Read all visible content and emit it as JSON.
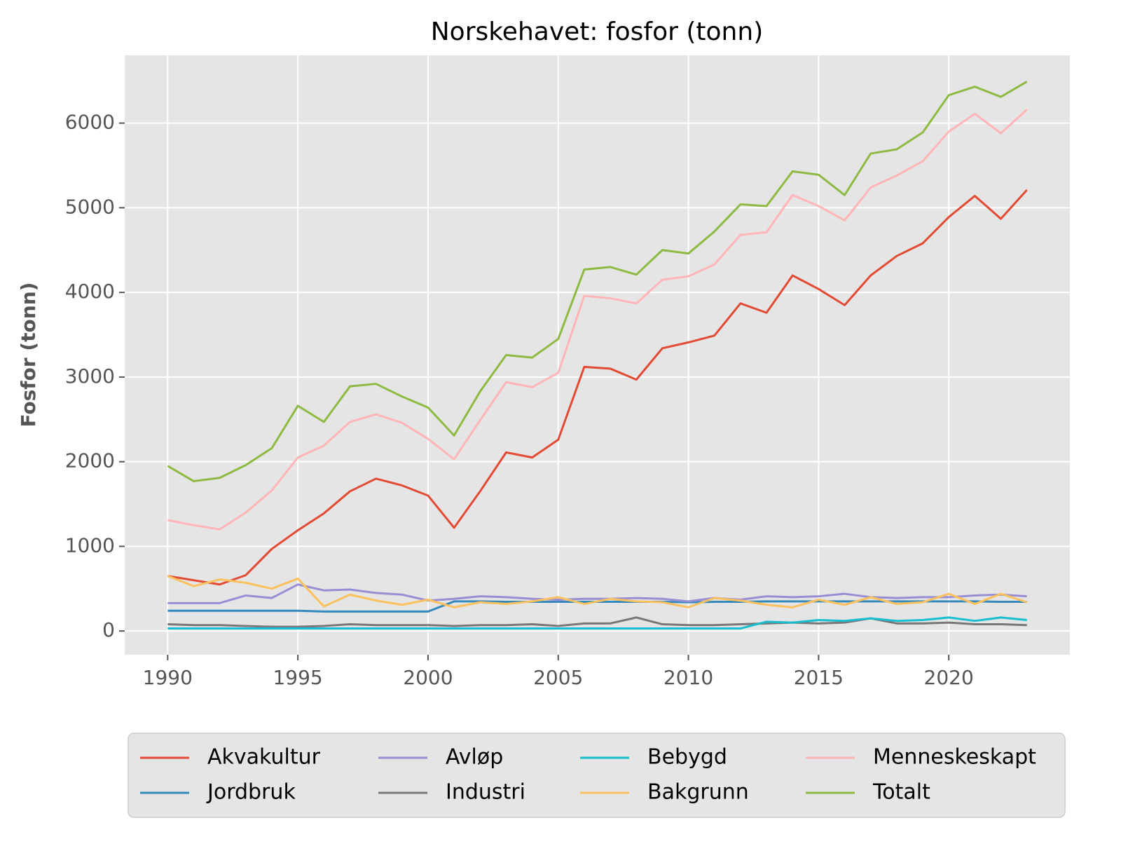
{
  "chart_data": {
    "type": "line",
    "title": "Norskehavet: fosfor (tonn)",
    "y_label": "Fosfor (tonn)",
    "x": [
      1990,
      1991,
      1992,
      1993,
      1994,
      1995,
      1996,
      1997,
      1998,
      1999,
      2000,
      2001,
      2002,
      2003,
      2004,
      2005,
      2006,
      2007,
      2008,
      2009,
      2010,
      2011,
      2012,
      2013,
      2014,
      2015,
      2016,
      2017,
      2018,
      2019,
      2020,
      2021,
      2022,
      2023
    ],
    "series": [
      {
        "name": "Akvakultur",
        "color": "#E24A33",
        "values": [
          650,
          600,
          550,
          660,
          970,
          1190,
          1390,
          1650,
          1800,
          1720,
          1600,
          1220,
          1650,
          2110,
          2050,
          2260,
          3120,
          3100,
          2970,
          3340,
          3410,
          3490,
          3870,
          3760,
          4200,
          4040,
          3850,
          4200,
          4430,
          4580,
          4890,
          5140,
          4870,
          5210
        ]
      },
      {
        "name": "Jordbruk",
        "color": "#348ABD",
        "values": [
          240,
          240,
          240,
          240,
          240,
          240,
          230,
          230,
          230,
          230,
          230,
          350,
          350,
          345,
          345,
          345,
          345,
          345,
          345,
          345,
          340,
          345,
          345,
          350,
          350,
          350,
          350,
          350,
          350,
          350,
          350,
          350,
          345,
          345
        ]
      },
      {
        "name": "Avløp",
        "color": "#988ED5",
        "values": [
          330,
          330,
          330,
          420,
          390,
          550,
          480,
          490,
          450,
          430,
          360,
          380,
          410,
          400,
          380,
          370,
          380,
          380,
          390,
          380,
          350,
          390,
          370,
          410,
          400,
          410,
          440,
          400,
          390,
          400,
          400,
          420,
          430,
          410
        ]
      },
      {
        "name": "Industri",
        "color": "#777777",
        "values": [
          80,
          70,
          70,
          60,
          50,
          50,
          60,
          80,
          70,
          70,
          70,
          60,
          70,
          70,
          80,
          60,
          90,
          90,
          160,
          80,
          70,
          70,
          80,
          90,
          100,
          90,
          100,
          150,
          90,
          90,
          100,
          80,
          80,
          70
        ]
      },
      {
        "name": "Bebygd",
        "color": "#17BECF",
        "values": [
          30,
          30,
          30,
          30,
          30,
          30,
          30,
          30,
          30,
          30,
          30,
          30,
          30,
          30,
          30,
          30,
          30,
          30,
          30,
          30,
          30,
          30,
          30,
          110,
          100,
          130,
          120,
          150,
          120,
          130,
          160,
          120,
          160,
          130
        ]
      },
      {
        "name": "Bakgrunn",
        "color": "#FBC15E",
        "values": [
          650,
          530,
          610,
          570,
          500,
          620,
          290,
          430,
          360,
          310,
          370,
          280,
          340,
          320,
          350,
          400,
          320,
          380,
          350,
          340,
          280,
          390,
          360,
          310,
          280,
          370,
          310,
          400,
          320,
          340,
          440,
          320,
          440,
          340
        ]
      },
      {
        "name": "Menneskeskapt",
        "color": "#FFB5B8",
        "values": [
          1310,
          1250,
          1200,
          1400,
          1660,
          2050,
          2190,
          2470,
          2560,
          2460,
          2270,
          2030,
          2490,
          2940,
          2880,
          3050,
          3960,
          3930,
          3870,
          4150,
          4190,
          4330,
          4680,
          4710,
          5150,
          5020,
          4850,
          5240,
          5380,
          5550,
          5900,
          6110,
          5880,
          6160
        ]
      },
      {
        "name": "Totalt",
        "color": "#8EBA42",
        "values": [
          1950,
          1770,
          1810,
          1960,
          2160,
          2660,
          2470,
          2890,
          2920,
          2770,
          2640,
          2310,
          2830,
          3260,
          3230,
          3450,
          4270,
          4300,
          4210,
          4500,
          4460,
          4720,
          5040,
          5020,
          5430,
          5390,
          5150,
          5640,
          5690,
          5890,
          6330,
          6430,
          6310,
          6490
        ]
      }
    ],
    "xlim": [
      1988.35,
      2024.65
    ],
    "xticks": [
      1990,
      1995,
      2000,
      2005,
      2010,
      2015,
      2020
    ],
    "ylim": [
      -280,
      6800
    ],
    "yticks": [
      0,
      1000,
      2000,
      3000,
      4000,
      5000,
      6000
    ],
    "grid": true,
    "legend_position": "bottom"
  }
}
